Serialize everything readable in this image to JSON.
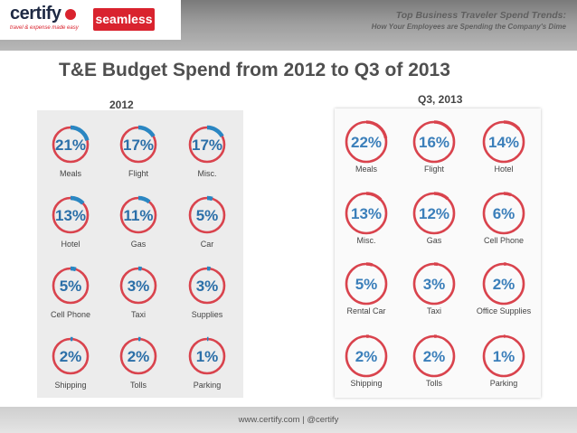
{
  "header": {
    "brand": "certify",
    "tagline": "travel & expense made easy",
    "partner": "seamless",
    "title_line1": "Top Business Traveler Spend Trends:",
    "title_line2": "How Your Employees are Spending the Company's Dime"
  },
  "title": "T&E Budget Spend from 2012 to Q3 of 2013",
  "footer": {
    "text": "www.certify.com   |   @certify"
  },
  "colors": {
    "ring": "#d9434d",
    "accent2012": "#2a86c2",
    "accent2013": "#d9434d",
    "text2012": "#2b6fa8",
    "text2013": "#3b7fba"
  },
  "chart_data": [
    {
      "type": "donut",
      "title": "2012",
      "categories": [
        "Meals",
        "Flight",
        "Misc.",
        "Hotel",
        "Gas",
        "Car",
        "Cell Phone",
        "Taxi",
        "Supplies",
        "Shipping",
        "Tolls",
        "Parking"
      ],
      "values": [
        21,
        17,
        17,
        13,
        11,
        5,
        5,
        3,
        3,
        2,
        2,
        1
      ],
      "labels": [
        "21%",
        "17%",
        "17%",
        "13%",
        "11%",
        "5%",
        "5%",
        "3%",
        "3%",
        "2%",
        "2%",
        "1%"
      ]
    },
    {
      "type": "donut",
      "title": "Q3, 2013",
      "categories": [
        "Meals",
        "Flight",
        "Hotel",
        "Misc.",
        "Gas",
        "Cell Phone",
        "Rental Car",
        "Taxi",
        "Office Supplies",
        "Shipping",
        "Tolls",
        "Parking"
      ],
      "values": [
        22,
        16,
        14,
        13,
        12,
        6,
        5,
        3,
        2,
        2,
        2,
        1
      ],
      "labels": [
        "22%",
        "16%",
        "14%",
        "13%",
        "12%",
        "6%",
        "5%",
        "3%",
        "2%",
        "2%",
        "2%",
        "1%"
      ]
    }
  ]
}
